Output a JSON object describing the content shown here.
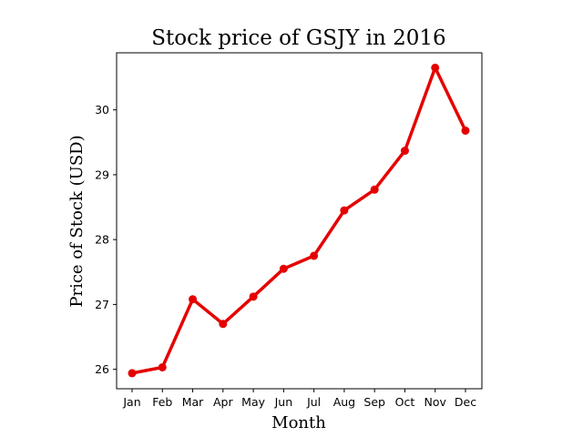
{
  "chart_data": {
    "type": "line",
    "title": "Stock price of GSJY in 2016",
    "xlabel": "Month",
    "ylabel": "Price of Stock (USD)",
    "categories": [
      "Jan",
      "Feb",
      "Mar",
      "Apr",
      "May",
      "Jun",
      "Jul",
      "Aug",
      "Sep",
      "Oct",
      "Nov",
      "Dec"
    ],
    "series": [
      {
        "values": [
          25.94,
          26.03,
          27.08,
          26.7,
          27.12,
          27.55,
          27.75,
          28.45,
          28.77,
          29.37,
          30.65,
          29.68
        ],
        "color": "#e50000"
      }
    ],
    "ylim": [
      25.7,
      30.88
    ],
    "yticks": [
      26,
      27,
      28,
      29,
      30
    ],
    "grid": false,
    "legend": false
  }
}
